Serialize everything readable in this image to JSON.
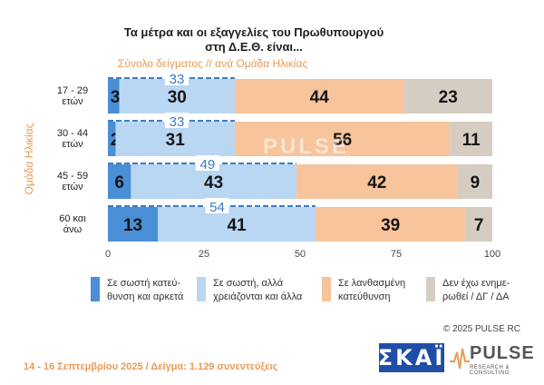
{
  "title": "Τα μέτρα και οι εξαγγελίες του Πρωθυπουργού\nστη Δ.Ε.Θ. είναι...",
  "subtitle": "Σύνολο δείγματος // ανά Ομάδα Ηλικίας",
  "y_axis_title": "Ομάδα Ηλικίας",
  "watermark": "PULSE",
  "copyright": "© 2025 PULSE RC",
  "footer_note": "14 - 16 Σεπτεμβρίου 2025  /  Δείγμα:  1.129 συνεντεύξεις",
  "logos": {
    "skai": "ΣΚΑΪ",
    "pulse": "PULSE",
    "pulse_sub": "RESEARCH & CONSULTING"
  },
  "colors": {
    "correct_enough": "#4a8fd6",
    "correct_more_needed": "#b9d7f3",
    "wrong_direction": "#f7c49b",
    "dont_know": "#d6cdc2",
    "accent_orange": "#e89a55",
    "sum_label": "#3a7cc6"
  },
  "chart_data": {
    "type": "bar",
    "orientation": "horizontal",
    "stacked": true,
    "categories": [
      "17 - 29\nετών",
      "30 - 44\nετών",
      "45 - 59\nετών",
      "60 και\nάνω"
    ],
    "series": [
      {
        "name": "Σε σωστή κατεύ-\nθυνση και αρκετά",
        "values": [
          3,
          2,
          6,
          13
        ]
      },
      {
        "name": "Σε σωστή, αλλά\nχρειάζονται και άλλα",
        "values": [
          30,
          31,
          43,
          41
        ]
      },
      {
        "name": "Σε λανθασμένη\nκατεύθυνση",
        "values": [
          44,
          56,
          42,
          39
        ]
      },
      {
        "name": "Δεν έχω ενημε-\nρωθεί / ΔΓ / ΔΑ",
        "values": [
          23,
          11,
          9,
          7
        ]
      }
    ],
    "positive_totals": [
      33,
      33,
      49,
      54
    ],
    "x_ticks": [
      0,
      25,
      50,
      75,
      100
    ],
    "xlim": [
      0,
      100
    ],
    "grid": false,
    "legend_position": "bottom"
  }
}
